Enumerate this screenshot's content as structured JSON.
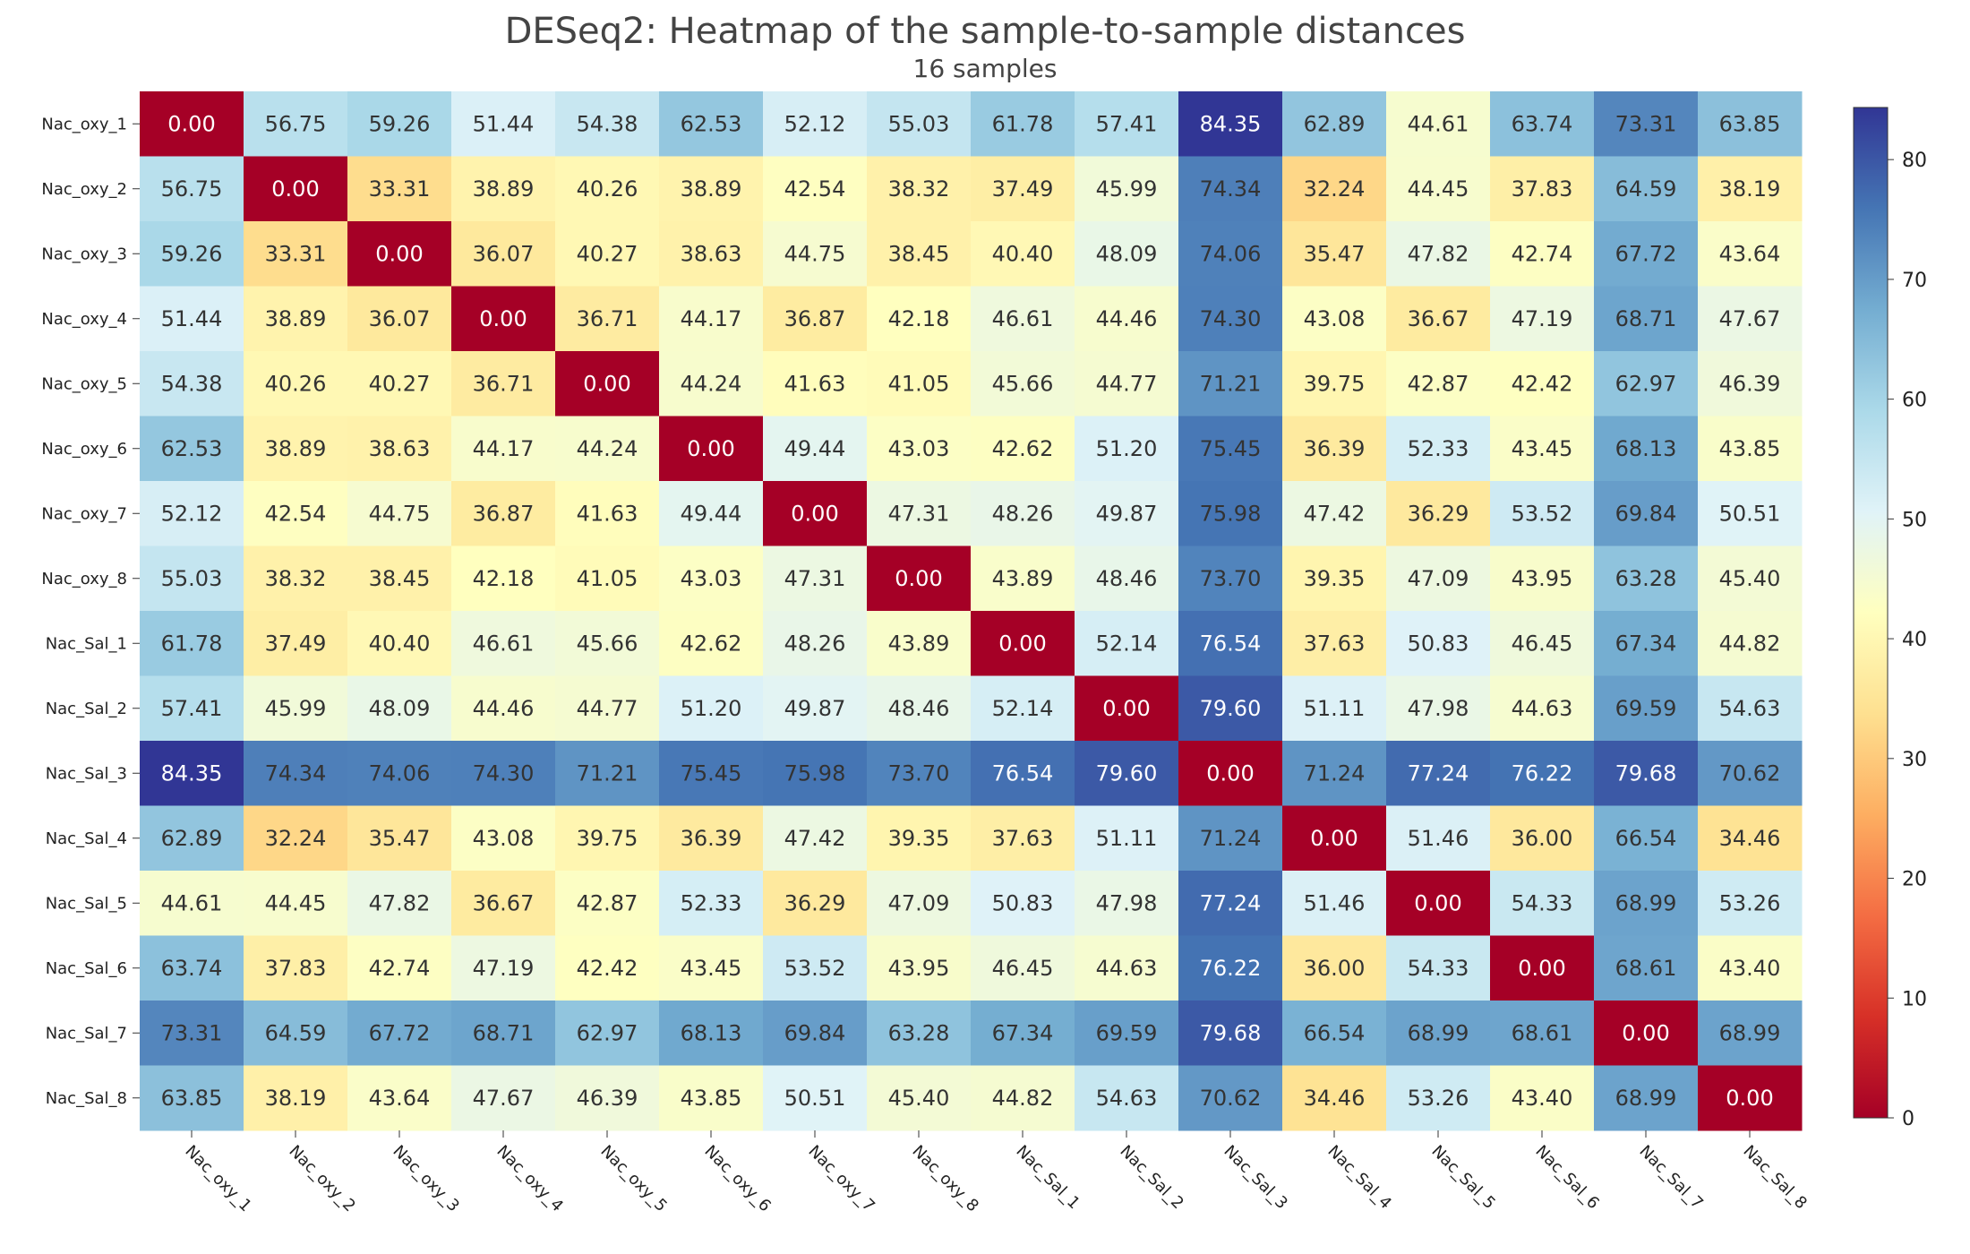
{
  "chart_data": {
    "type": "heatmap",
    "title": "DESeq2: Heatmap of the sample-to-sample distances",
    "subtitle": "16 samples",
    "samples": [
      "Nac_oxy_1",
      "Nac_oxy_2",
      "Nac_oxy_3",
      "Nac_oxy_4",
      "Nac_oxy_5",
      "Nac_oxy_6",
      "Nac_oxy_7",
      "Nac_oxy_8",
      "Nac_Sal_1",
      "Nac_Sal_2",
      "Nac_Sal_3",
      "Nac_Sal_4",
      "Nac_Sal_5",
      "Nac_Sal_6",
      "Nac_Sal_7",
      "Nac_Sal_8"
    ],
    "values": [
      [
        0.0,
        56.75,
        59.26,
        51.44,
        54.38,
        62.53,
        52.12,
        55.03,
        61.78,
        57.41,
        84.35,
        62.89,
        44.61,
        63.74,
        73.31,
        63.85
      ],
      [
        56.75,
        0.0,
        33.31,
        38.89,
        40.26,
        38.89,
        42.54,
        38.32,
        37.49,
        45.99,
        74.34,
        32.24,
        44.45,
        37.83,
        64.59,
        38.19
      ],
      [
        59.26,
        33.31,
        0.0,
        36.07,
        40.27,
        38.63,
        44.75,
        38.45,
        40.4,
        48.09,
        74.06,
        35.47,
        47.82,
        42.74,
        67.72,
        43.64
      ],
      [
        51.44,
        38.89,
        36.07,
        0.0,
        36.71,
        44.17,
        36.87,
        42.18,
        46.61,
        44.46,
        74.3,
        43.08,
        36.67,
        47.19,
        68.71,
        47.67
      ],
      [
        54.38,
        40.26,
        40.27,
        36.71,
        0.0,
        44.24,
        41.63,
        41.05,
        45.66,
        44.77,
        71.21,
        39.75,
        42.87,
        42.42,
        62.97,
        46.39
      ],
      [
        62.53,
        38.89,
        38.63,
        44.17,
        44.24,
        0.0,
        49.44,
        43.03,
        42.62,
        51.2,
        75.45,
        36.39,
        52.33,
        43.45,
        68.13,
        43.85
      ],
      [
        52.12,
        42.54,
        44.75,
        36.87,
        41.63,
        49.44,
        0.0,
        47.31,
        48.26,
        49.87,
        75.98,
        47.42,
        36.29,
        53.52,
        69.84,
        50.51
      ],
      [
        55.03,
        38.32,
        38.45,
        42.18,
        41.05,
        43.03,
        47.31,
        0.0,
        43.89,
        48.46,
        73.7,
        39.35,
        47.09,
        43.95,
        63.28,
        45.4
      ],
      [
        61.78,
        37.49,
        40.4,
        46.61,
        45.66,
        42.62,
        48.26,
        43.89,
        0.0,
        52.14,
        76.54,
        37.63,
        50.83,
        46.45,
        67.34,
        44.82
      ],
      [
        57.41,
        45.99,
        48.09,
        44.46,
        44.77,
        51.2,
        49.87,
        48.46,
        52.14,
        0.0,
        79.6,
        51.11,
        47.98,
        44.63,
        69.59,
        54.63
      ],
      [
        84.35,
        74.34,
        74.06,
        74.3,
        71.21,
        75.45,
        75.98,
        73.7,
        76.54,
        79.6,
        0.0,
        71.24,
        77.24,
        76.22,
        79.68,
        70.62
      ],
      [
        62.89,
        32.24,
        35.47,
        43.08,
        39.75,
        36.39,
        47.42,
        39.35,
        37.63,
        51.11,
        71.24,
        0.0,
        51.46,
        36.0,
        66.54,
        34.46
      ],
      [
        44.61,
        44.45,
        47.82,
        36.67,
        42.87,
        52.33,
        36.29,
        47.09,
        50.83,
        47.98,
        77.24,
        51.46,
        0.0,
        54.33,
        68.99,
        53.26
      ],
      [
        63.74,
        37.83,
        42.74,
        47.19,
        42.42,
        43.45,
        53.52,
        43.95,
        46.45,
        44.63,
        76.22,
        36.0,
        54.33,
        0.0,
        68.61,
        43.4
      ],
      [
        73.31,
        64.59,
        67.72,
        68.71,
        62.97,
        68.13,
        69.84,
        63.28,
        67.34,
        69.59,
        79.68,
        66.54,
        68.99,
        68.61,
        0.0,
        68.99
      ],
      [
        63.85,
        38.19,
        43.64,
        47.67,
        46.39,
        43.85,
        50.51,
        45.4,
        44.82,
        54.63,
        70.62,
        34.46,
        53.26,
        43.4,
        68.99,
        0.0
      ]
    ],
    "value_format": "2 decimals",
    "colorbar": {
      "colormap": "RdYlBu",
      "vmin": 0,
      "vmax": 84.35,
      "ticks": [
        0,
        10,
        20,
        30,
        40,
        50,
        60,
        70,
        80
      ],
      "placement": "right"
    },
    "xtick_rotation": "-45 degrees",
    "grid": false
  }
}
